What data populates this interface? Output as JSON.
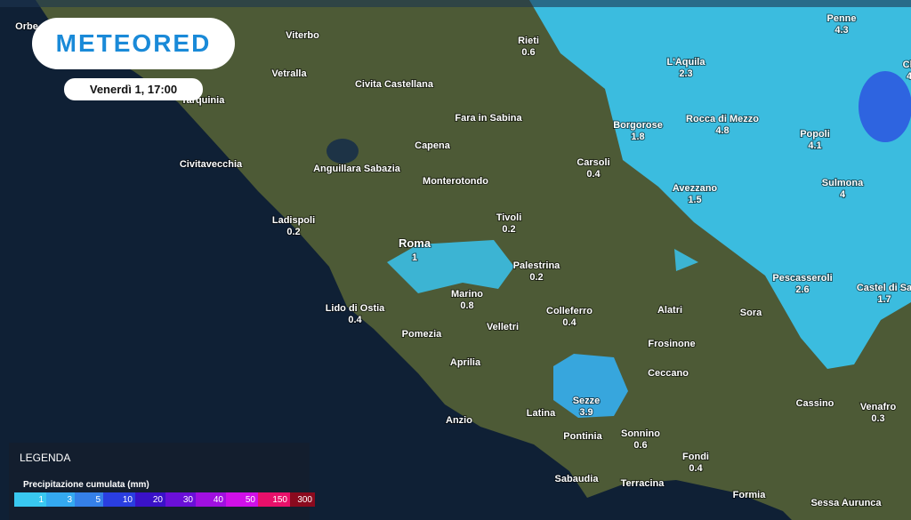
{
  "header": {
    "logo": "METEORED",
    "date": "Venerdì 1, 17:00"
  },
  "places": [
    {
      "name": "Orbe"
    },
    {
      "name": "Viterbo"
    },
    {
      "name": "Rieti",
      "value": 0.6
    },
    {
      "name": "Penne",
      "value": 4.3
    },
    {
      "name": "Vetralla"
    },
    {
      "name": "Civita Castellana"
    },
    {
      "name": "L'Aquila",
      "value": 2.3
    },
    {
      "name": "Ch",
      "value": 4
    },
    {
      "name": "Tarquinia"
    },
    {
      "name": "Fara in Sabina"
    },
    {
      "name": "Borgorose",
      "value": 1.8
    },
    {
      "name": "Rocca di Mezzo",
      "value": 4.8
    },
    {
      "name": "Popoli",
      "value": 4.1
    },
    {
      "name": "Capena"
    },
    {
      "name": "Carsoli",
      "value": 0.4
    },
    {
      "name": "Civitavecchia"
    },
    {
      "name": "Anguillara Sabazia"
    },
    {
      "name": "Monterotondo"
    },
    {
      "name": "Sulmona",
      "value": 4
    },
    {
      "name": "Avezzano",
      "value": 1.5
    },
    {
      "name": "Ladispoli",
      "value": 0.2
    },
    {
      "name": "Tivoli",
      "value": 0.2
    },
    {
      "name": "Roma",
      "value": 1
    },
    {
      "name": "Palestrina",
      "value": 0.2
    },
    {
      "name": "Pescasseroli",
      "value": 2.6
    },
    {
      "name": "Castel di Sa",
      "value": 1.7
    },
    {
      "name": "Marino",
      "value": 0.8
    },
    {
      "name": "Lido di Ostia",
      "value": 0.4
    },
    {
      "name": "Colleferro",
      "value": 0.4
    },
    {
      "name": "Alatri"
    },
    {
      "name": "Sora"
    },
    {
      "name": "Velletri"
    },
    {
      "name": "Pomezia"
    },
    {
      "name": "Frosinone"
    },
    {
      "name": "Aprilia"
    },
    {
      "name": "Ceccano"
    },
    {
      "name": "Sezze",
      "value": 3.9
    },
    {
      "name": "Cassino"
    },
    {
      "name": "Venafro",
      "value": 0.3
    },
    {
      "name": "Latina"
    },
    {
      "name": "Anzio"
    },
    {
      "name": "Pontinia"
    },
    {
      "name": "Sonnino",
      "value": 0.6
    },
    {
      "name": "Fondi",
      "value": 0.4
    },
    {
      "name": "Sabaudia"
    },
    {
      "name": "Terracina"
    },
    {
      "name": "Formia"
    },
    {
      "name": "Sessa Aurunca"
    }
  ],
  "legend": {
    "title": "LEGENDA",
    "subtitle": "Precipitazione cumulata (mm)",
    "scale": [
      {
        "label": 1,
        "color": "#39c8f0"
      },
      {
        "label": 3,
        "color": "#34a9f0"
      },
      {
        "label": 5,
        "color": "#3580e8"
      },
      {
        "label": 10,
        "color": "#2a3ee0"
      },
      {
        "label": 20,
        "color": "#3a12c8"
      },
      {
        "label": 30,
        "color": "#6a10d8"
      },
      {
        "label": 40,
        "color": "#a010e0"
      },
      {
        "label": 50,
        "color": "#d010e8"
      },
      {
        "label": 150,
        "color": "#e8106a"
      },
      {
        "label": 300,
        "color": "#8a0a1e"
      }
    ]
  }
}
